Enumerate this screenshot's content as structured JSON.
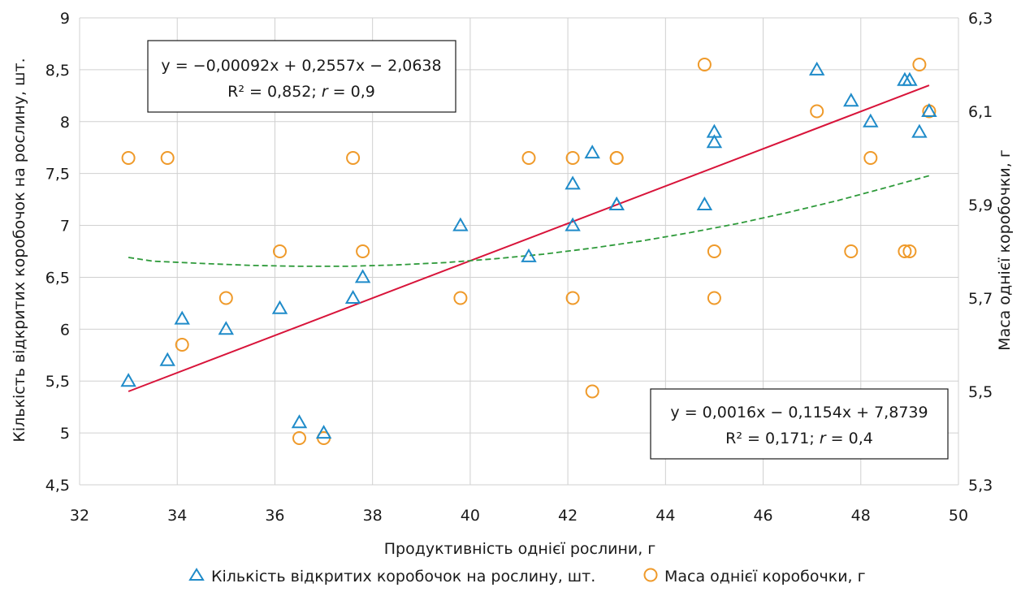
{
  "chart_data": {
    "type": "scatter",
    "xlabel": "Продуктивність однієї рослини, г",
    "ylabel_left": "Кількість відкритих коробочок на рослину, шт.",
    "ylabel_right": "Маса однієї коробочки, г",
    "xlim": [
      32,
      50
    ],
    "ylim_left": [
      4.5,
      9
    ],
    "ylim_right": [
      5.3,
      6.3
    ],
    "x_ticks": [
      "32",
      "34",
      "36",
      "38",
      "40",
      "42",
      "44",
      "46",
      "48",
      "50"
    ],
    "y_left_ticks": [
      "4,5",
      "5",
      "5,5",
      "6",
      "6,5",
      "7",
      "7,5",
      "8",
      "8,5",
      "9"
    ],
    "y_right_ticks": [
      "5,3",
      "5,5",
      "5,7",
      "5,9",
      "6,1",
      "6,3"
    ],
    "grid": true,
    "legend_position": "bottom",
    "colors": {
      "series1": "#1f8bc9",
      "series2": "#ef9a2a",
      "trend1": "#d8143a",
      "trend2": "#2e9a3a",
      "grid": "#d0d0d0"
    },
    "series": [
      {
        "name": "Кількість відкритих коробочок на рослину, шт.",
        "axis": "left",
        "marker": "triangle",
        "x": [
          33.0,
          33.8,
          34.1,
          35.0,
          36.1,
          36.5,
          37.0,
          37.6,
          37.8,
          39.8,
          41.2,
          42.1,
          42.1,
          42.5,
          43.0,
          43.0,
          44.8,
          45.0,
          45.0,
          47.1,
          47.8,
          48.2,
          48.9,
          49.0,
          49.2,
          49.4
        ],
        "y": [
          5.5,
          5.7,
          6.1,
          6.0,
          6.2,
          5.1,
          5.0,
          6.3,
          6.5,
          7.0,
          6.7,
          7.4,
          7.0,
          7.7,
          7.2,
          7.2,
          7.2,
          7.9,
          7.8,
          8.5,
          8.2,
          8.0,
          8.4,
          8.4,
          7.9,
          8.1
        ]
      },
      {
        "name": "Маса однієї коробочки, г",
        "axis": "right",
        "marker": "circle",
        "x": [
          33.0,
          33.8,
          34.1,
          35.0,
          36.1,
          36.5,
          37.0,
          37.6,
          37.8,
          39.8,
          41.2,
          42.1,
          42.1,
          42.5,
          43.0,
          43.0,
          44.8,
          45.0,
          45.0,
          47.1,
          47.8,
          48.2,
          48.9,
          49.0,
          49.2,
          49.4
        ],
        "y": [
          6.0,
          6.0,
          5.6,
          5.7,
          5.8,
          5.4,
          5.4,
          6.0,
          5.8,
          5.7,
          6.0,
          6.0,
          5.7,
          5.5,
          6.0,
          6.0,
          6.2,
          5.8,
          5.7,
          6.1,
          5.8,
          6.0,
          5.8,
          5.8,
          6.2,
          6.1
        ]
      }
    ],
    "trendlines": [
      {
        "series": 0,
        "axis": "left",
        "style": "solid",
        "x": [
          33.0,
          49.4
        ],
        "y": [
          5.4,
          8.35
        ]
      },
      {
        "series": 1,
        "axis": "right",
        "style": "dashed",
        "x": [
          33.0,
          33.5,
          34.5,
          35.5,
          36.5,
          37.5,
          38.5,
          39.5,
          40.5,
          41.5,
          42.5,
          43.5,
          44.5,
          45.5,
          46.5,
          47.5,
          48.5,
          49.4
        ],
        "y": [
          5.787,
          5.779,
          5.774,
          5.77,
          5.768,
          5.768,
          5.771,
          5.776,
          5.784,
          5.794,
          5.807,
          5.822,
          5.84,
          5.86,
          5.883,
          5.908,
          5.936,
          5.962
        ]
      }
    ],
    "annotations": [
      {
        "id": "eq1",
        "line1": "y = −0,00092x + 0,2557x − 2,0638",
        "line2_prefix": "R² = 0,852; ",
        "line2_r": "r",
        "line2_suffix": " = 0,9"
      },
      {
        "id": "eq2",
        "line1": "y = 0,0016x − 0,1154x + 7,8739",
        "line2_prefix": "R² = 0,171; ",
        "line2_r": "r",
        "line2_suffix": " = 0,4"
      }
    ]
  }
}
